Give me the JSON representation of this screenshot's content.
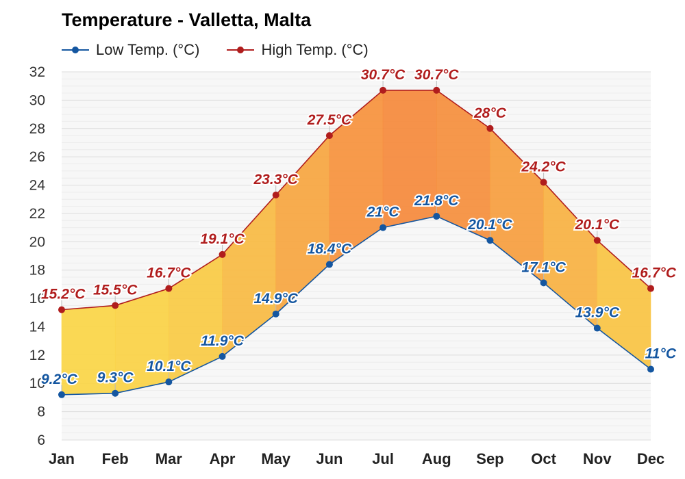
{
  "colors": {
    "low": "#1456a0",
    "high": "#b01d1d",
    "fill_warm": "#f6893c",
    "fill_cool": "#fbd747",
    "grid": "#e4e4e4"
  },
  "chart_data": {
    "type": "area",
    "title": "Temperature - Valletta, Malta",
    "categories": [
      "Jan",
      "Feb",
      "Mar",
      "Apr",
      "May",
      "Jun",
      "Jul",
      "Aug",
      "Sep",
      "Oct",
      "Nov",
      "Dec"
    ],
    "series": [
      {
        "name": "Low Temp. (°C)",
        "values": [
          9.2,
          9.3,
          10.1,
          11.9,
          14.9,
          18.4,
          21,
          21.8,
          20.1,
          17.1,
          13.9,
          11
        ],
        "labels": [
          "9.2°C",
          "9.3°C",
          "10.1°C",
          "11.9°C",
          "14.9°C",
          "18.4°C",
          "21°C",
          "21.8°C",
          "20.1°C",
          "17.1°C",
          "13.9°C",
          "11°C"
        ]
      },
      {
        "name": "High Temp. (°C)",
        "values": [
          15.2,
          15.5,
          16.7,
          19.1,
          23.3,
          27.5,
          30.7,
          30.7,
          28,
          24.2,
          20.1,
          16.7
        ],
        "labels": [
          "15.2°C",
          "15.5°C",
          "16.7°C",
          "19.1°C",
          "23.3°C",
          "27.5°C",
          "30.7°C",
          "30.7°C",
          "28°C",
          "24.2°C",
          "20.1°C",
          "16.7°C"
        ]
      }
    ],
    "ylim": [
      6,
      32
    ],
    "yticks": [
      "6",
      "8",
      "10",
      "12",
      "14",
      "16",
      "18",
      "20",
      "22",
      "24",
      "26",
      "28",
      "30",
      "32"
    ],
    "grid": true,
    "legend_position": "top-left",
    "xlabel": "",
    "ylabel": ""
  }
}
